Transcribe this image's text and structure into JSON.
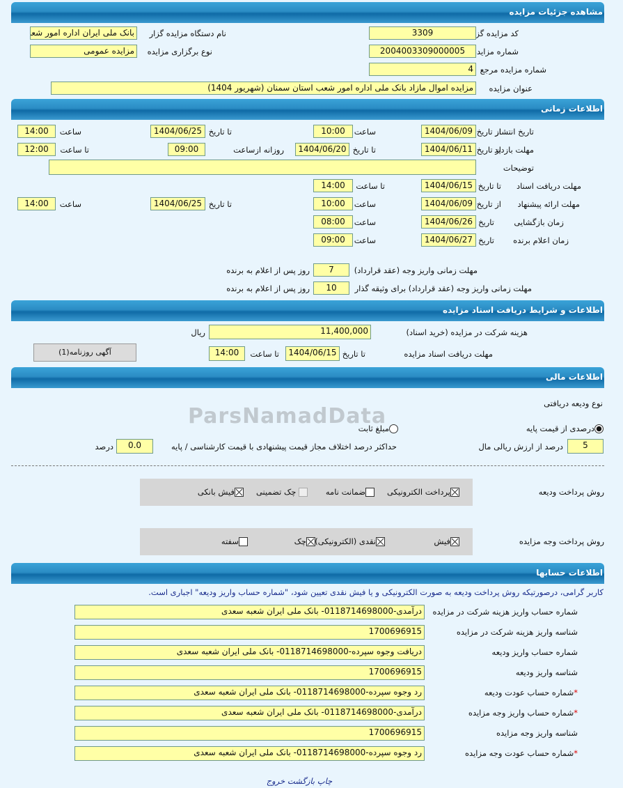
{
  "watermark": "ParsNamadData",
  "s1": {
    "title": "مشاهده جزئیات مزایده",
    "code_label": "کد مزایده گزار",
    "code": "3309",
    "org_label": "نام دستگاه مزایده گزار",
    "org": "بانک ملی ایران اداره امور شعب",
    "number_label": "شماره مزایده",
    "number": "2004003309000005",
    "type_label": "نوع برگزاری مزایده",
    "type": "مزایده عمومی",
    "ref_label": "شماره مزایده مرجع",
    "ref": "4",
    "subject_label": "عنوان مزایده",
    "subject": "مزایده اموال مازاد بانک ملی اداره امور شعب استان سمنان (شهریور 1404)"
  },
  "s2": {
    "title": "اطلاعات زمانی",
    "from_date": "از تاریخ",
    "to_date": "تا تاریخ",
    "hour": "ساعت",
    "to_hour": "تا ساعت",
    "date": "تاریخ",
    "daily_from": "روزانه ازساعت",
    "publish_label": "تاریخ انتشار",
    "publish_from": "1404/06/09",
    "publish_from_time": "10:00",
    "publish_to": "1404/06/25",
    "publish_to_time": "14:00",
    "visit_label": "مهلت بازدید",
    "visit_from": "1404/06/11",
    "visit_to": "1404/06/20",
    "visit_daily_from": "09:00",
    "visit_daily_to": "12:00",
    "desc_label": "توضیحات",
    "desc": "",
    "docs_label": "مهلت دریافت اسناد",
    "docs_to": "1404/06/15",
    "docs_to_time": "14:00",
    "offer_label": "مهلت ارائه پیشنهاد",
    "offer_from": "1404/06/09",
    "offer_from_time": "10:00",
    "offer_to": "1404/06/25",
    "offer_to_time": "14:00",
    "open_label": "زمان بازگشایی",
    "open_date": "1404/06/26",
    "open_time": "08:00",
    "winner_label": "زمان اعلام برنده",
    "winner_date": "1404/06/27",
    "winner_time": "09:00",
    "pay_label": "مهلت زمانی واریز وجه (عقد قرارداد)",
    "pay_days": "7",
    "pay_suffix": "روز پس از اعلام به برنده",
    "pay2_label": "مهلت زمانی واریز وجه (عقد قرارداد) برای وثیقه گذار",
    "pay2_days": "10",
    "pay2_suffix": "روز پس از اعلام به برنده"
  },
  "s3": {
    "title": "اطلاعات و شرایط دریافت اسناد مزایده",
    "fee_label": "هزینه شرکت در مزایده (خرید اسناد)",
    "fee": "11,400,000",
    "fee_unit": "ریال",
    "deadline_label": "مهلت دریافت اسناد مزایده",
    "to_date": "تا تاریخ",
    "date": "1404/06/15",
    "to_hour": "تا ساعت",
    "time": "14:00",
    "ad_button": "آگهی روزنامه(1)"
  },
  "s4": {
    "title": "اطلاعات مالی",
    "deposit_type_label": "نوع ودیعه دریافتی",
    "radio_percent": "درصدی از قیمت پایه",
    "radio_percent_selected": true,
    "radio_fixed": "مبلغ ثابت",
    "radio_fixed_selected": false,
    "percent": "5",
    "percent_suffix": "درصد از ارزش ریالی مال",
    "max_diff_label": "حداکثر درصد اختلاف مجاز قیمت پیشنهادی با قیمت کارشناسی / پایه",
    "max_diff": "0.0",
    "max_diff_unit": "درصد",
    "deposit_method_label": "روش پرداخت ودیعه",
    "deposit_methods": [
      {
        "label": "پرداخت الکترونیکی",
        "checked": true
      },
      {
        "label": "ضمانت نامه",
        "checked": false
      },
      {
        "label": "چک تضمینی",
        "checked": false
      },
      {
        "label": "فیش بانکی",
        "checked": true
      }
    ],
    "payment_method_label": "روش پرداخت وجه مزایده",
    "payment_methods": [
      {
        "label": "فیش",
        "checked": true
      },
      {
        "label": "نقدی (الکترونیکی)",
        "checked": true
      },
      {
        "label": "چک",
        "checked": true
      },
      {
        "label": "سفته",
        "checked": false
      }
    ]
  },
  "s5": {
    "title": "اطلاعات حسابها",
    "note": "کاربر گرامی، درصورتیکه روش پرداخت ودیعه به صورت الکترونیکی و یا فیش نقدی تعیین شود، \"شماره حساب واریز ودیعه\" اجباری است.",
    "rows": [
      {
        "label": "شماره حساب واریز هزینه شرکت در مزایده",
        "value": "درآمدی-0118714698000- بانک ملی ایران شعبه سعدی",
        "required": false
      },
      {
        "label": "شناسه واریز هزینه شرکت در مزایده",
        "value": "1700696915",
        "required": false
      },
      {
        "label": "شماره حساب واریز ودیعه",
        "value": "دریافت وجوه سپرده-0118714698000- بانک ملی ایران شعبه سعدی",
        "required": false
      },
      {
        "label": "شناسه واریز ودیعه",
        "value": "1700696915",
        "required": false
      },
      {
        "label": "شماره حساب عودت ودیعه",
        "value": "رد وجوه سپرده-0118714698000- بانک ملی ایران شعبه سعدی",
        "required": true
      },
      {
        "label": "شماره حساب واریز وجه مزایده",
        "value": "درآمدی-0118714698000- بانک ملی ایران شعبه سعدی",
        "required": true
      },
      {
        "label": "شناسه واریز وجه مزایده",
        "value": "1700696915",
        "required": false
      },
      {
        "label": "شماره حساب عودت وجه مزایده",
        "value": "رد وجوه سپرده-0118714698000- بانک ملی ایران شعبه سعدی",
        "required": true
      }
    ]
  },
  "footer": {
    "print": "چاپ",
    "back": "بازگشت",
    "exit": "خروج"
  }
}
